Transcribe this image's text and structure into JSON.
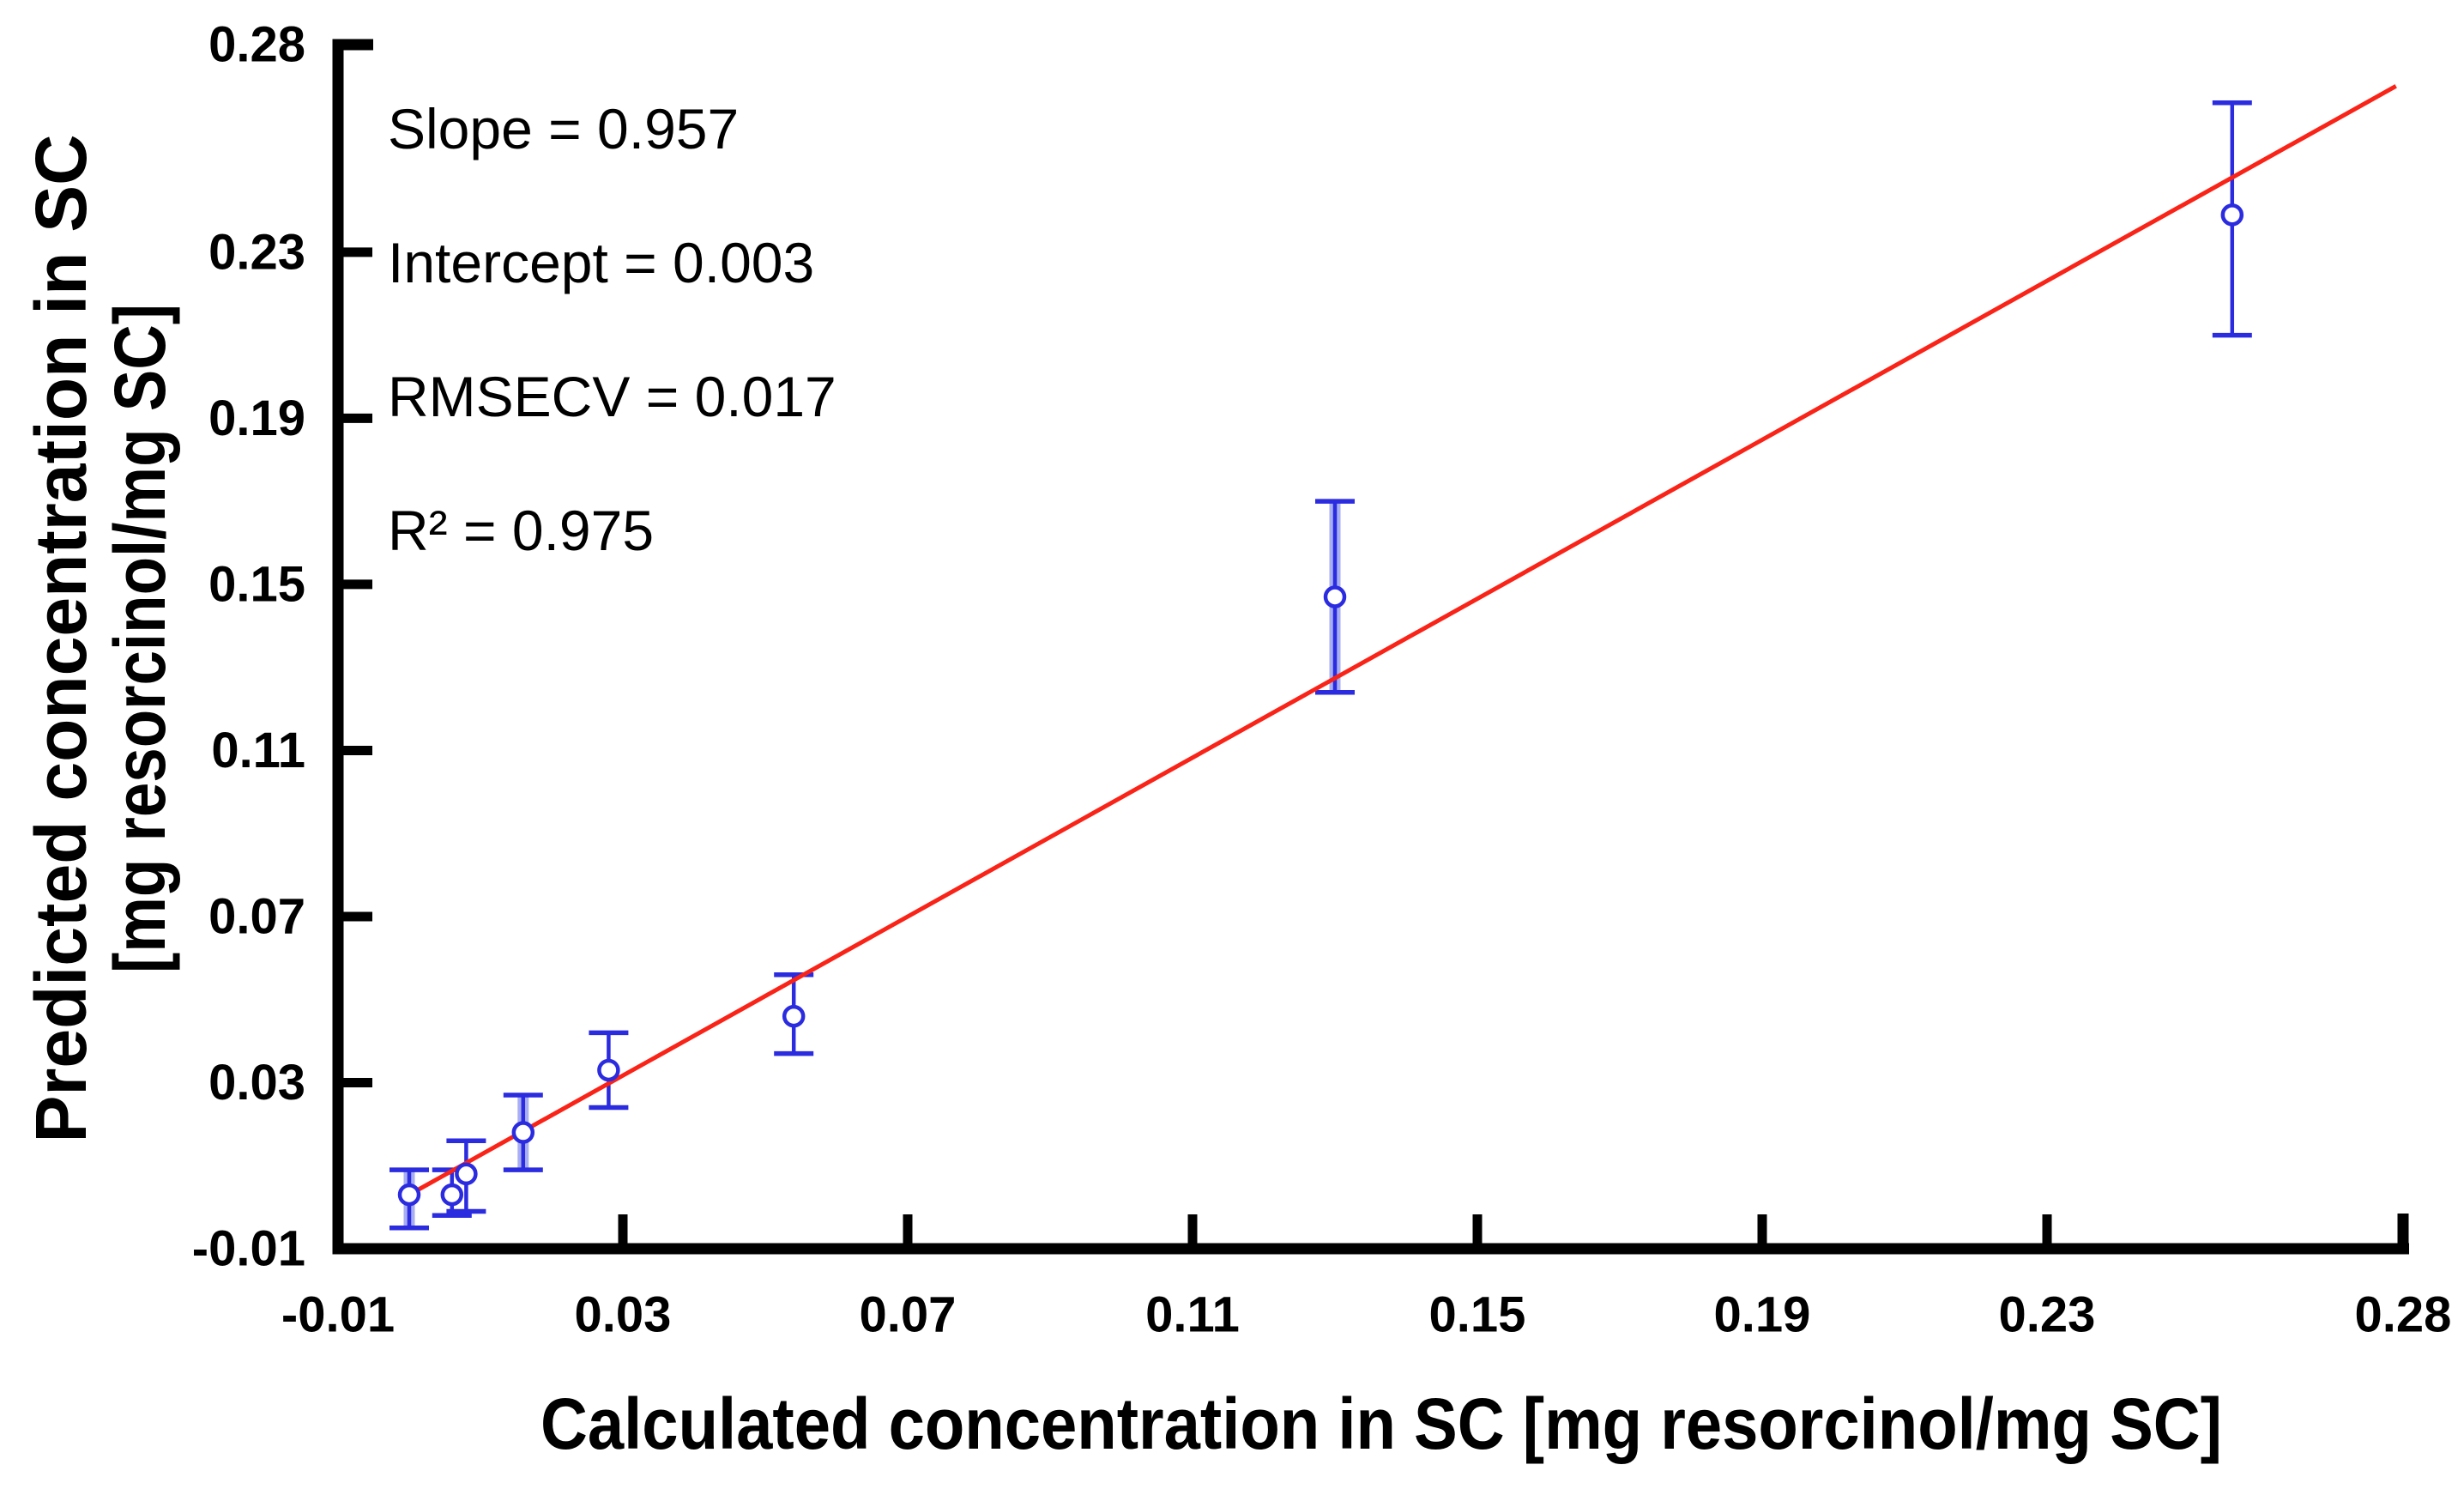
{
  "chart_data": {
    "type": "scatter",
    "title": "",
    "xlabel": "Calculated concentration in SC [mg resorcinol/mg SC]",
    "ylabel_line1": "Predicted concentration in SC",
    "ylabel_line2": "[mg resorcinol/mg SC]",
    "xlim": [
      -0.01,
      0.28
    ],
    "ylim": [
      -0.01,
      0.28
    ],
    "x_tick_values": [
      -0.01,
      0.03,
      0.07,
      0.11,
      0.15,
      0.19,
      0.23,
      0.28
    ],
    "x_tick_labels": [
      "-0.01",
      "0.03",
      "0.07",
      "0.11",
      "0.15",
      "0.19",
      "0.23",
      "0.28"
    ],
    "y_tick_values": [
      -0.01,
      0.03,
      0.07,
      0.11,
      0.15,
      0.19,
      0.23,
      0.28
    ],
    "y_tick_labels": [
      "-0.01",
      "0.03",
      "0.07",
      "0.11",
      "0.15",
      "0.19",
      "0.23",
      "0.28"
    ],
    "grid": false,
    "legend": false,
    "annotations": [
      "Slope = 0.957",
      "Intercept = 0.003",
      "RMSECV = 0.017",
      "R² = 0.975"
    ],
    "regression_line": {
      "slope": 0.957,
      "intercept": 0.003,
      "x_start": -0.001,
      "x_end": 0.279,
      "color": "#fa2318"
    },
    "series": [
      {
        "name": "predicted vs calculated concentration (mean with error bars)",
        "marker": "open-circle",
        "marker_color": "#2b2be0",
        "error_band_color": "#a8aef2",
        "points": [
          {
            "x": 0.0,
            "y": 0.003,
            "y_lo": -0.005,
            "y_hi": 0.009,
            "band": true
          },
          {
            "x": 0.006,
            "y": 0.003,
            "y_lo": -0.002,
            "y_hi": 0.009,
            "band": false
          },
          {
            "x": 0.008,
            "y": 0.008,
            "y_lo": -0.001,
            "y_hi": 0.016,
            "band": false
          },
          {
            "x": 0.016,
            "y": 0.018,
            "y_lo": 0.009,
            "y_hi": 0.027,
            "band": true
          },
          {
            "x": 0.028,
            "y": 0.033,
            "y_lo": 0.024,
            "y_hi": 0.042,
            "band": false
          },
          {
            "x": 0.054,
            "y": 0.046,
            "y_lo": 0.037,
            "y_hi": 0.056,
            "band": false
          },
          {
            "x": 0.13,
            "y": 0.147,
            "y_lo": 0.124,
            "y_hi": 0.17,
            "band": true
          },
          {
            "x": 0.256,
            "y": 0.239,
            "y_lo": 0.21,
            "y_hi": 0.266,
            "band": false
          }
        ]
      }
    ],
    "axis_color": "#000000",
    "background_color": "#ffffff"
  }
}
